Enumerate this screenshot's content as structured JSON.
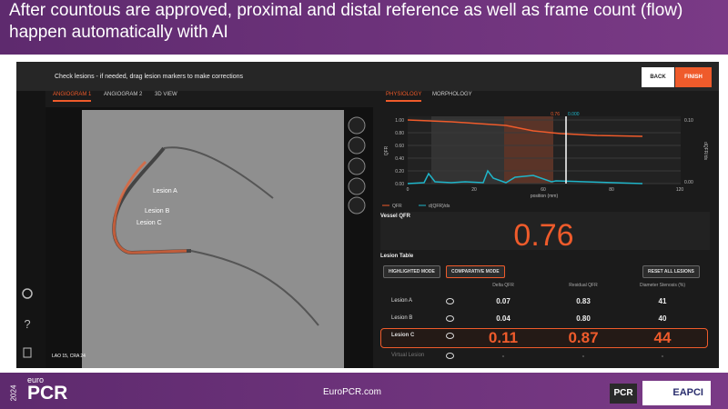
{
  "slide": {
    "title": "After countous are approved, proximal and distal reference as well as frame count (flow) happen automatically with AI",
    "footer": {
      "year": "2024",
      "brand_small": "euro",
      "brand": "PCR",
      "url": "EuroPCR.com",
      "logo_pcr": "PCR",
      "logo_eapci": "EAPCI"
    }
  },
  "app": {
    "instruction": "Check lesions - if needed, drag lesion markers to make corrections",
    "buttons": [
      "BACK",
      "FINISH"
    ],
    "left_tabs": [
      "ANGIOGRAM 1",
      "ANGIOGRAM 2",
      "3D VIEW"
    ],
    "right_tabs": [
      "PHYSIOLOGY",
      "MORPHOLOGY"
    ],
    "angio_labels": [
      "Lesion A",
      "Lesion B",
      "Lesion C"
    ],
    "view_angle": "LAO 15, CRA 24",
    "plot": {
      "y_ticks": [
        "1.00",
        "0.80",
        "0.60",
        "0.40",
        "0.20",
        "0.00"
      ],
      "y_label": "QFR",
      "y2_ticks": [
        "0.10",
        "0.00"
      ],
      "y2_label": "dQFR/ds",
      "x_ticks": [
        "0",
        "20",
        "60",
        "80",
        "120"
      ],
      "x_label": "position (mm)",
      "cursor_qfr": "0.76",
      "cursor_dqfr": "0.000",
      "legend": [
        "QFR",
        "d(QFR)/ds"
      ]
    },
    "vessel_qfr_label": "Vessel QFR",
    "vessel_qfr": "0.76",
    "lesion_table": {
      "title": "Lesion Table",
      "modes": [
        "HIGHLIGHTED MODE",
        "COMPARATIVE MODE"
      ],
      "reset": "RESET ALL LESIONS",
      "headers": [
        "Delta QFR",
        "Residual QFR",
        "Diameter Stenosis (%)"
      ],
      "rows": [
        [
          "Lesion A",
          "0.07",
          "0.83",
          "41"
        ],
        [
          "Lesion B",
          "0.04",
          "0.80",
          "40"
        ],
        [
          "Lesion C",
          "0.11",
          "0.87",
          "44"
        ],
        [
          "Virtual Lesion",
          "-",
          "-",
          "-"
        ]
      ]
    }
  }
}
